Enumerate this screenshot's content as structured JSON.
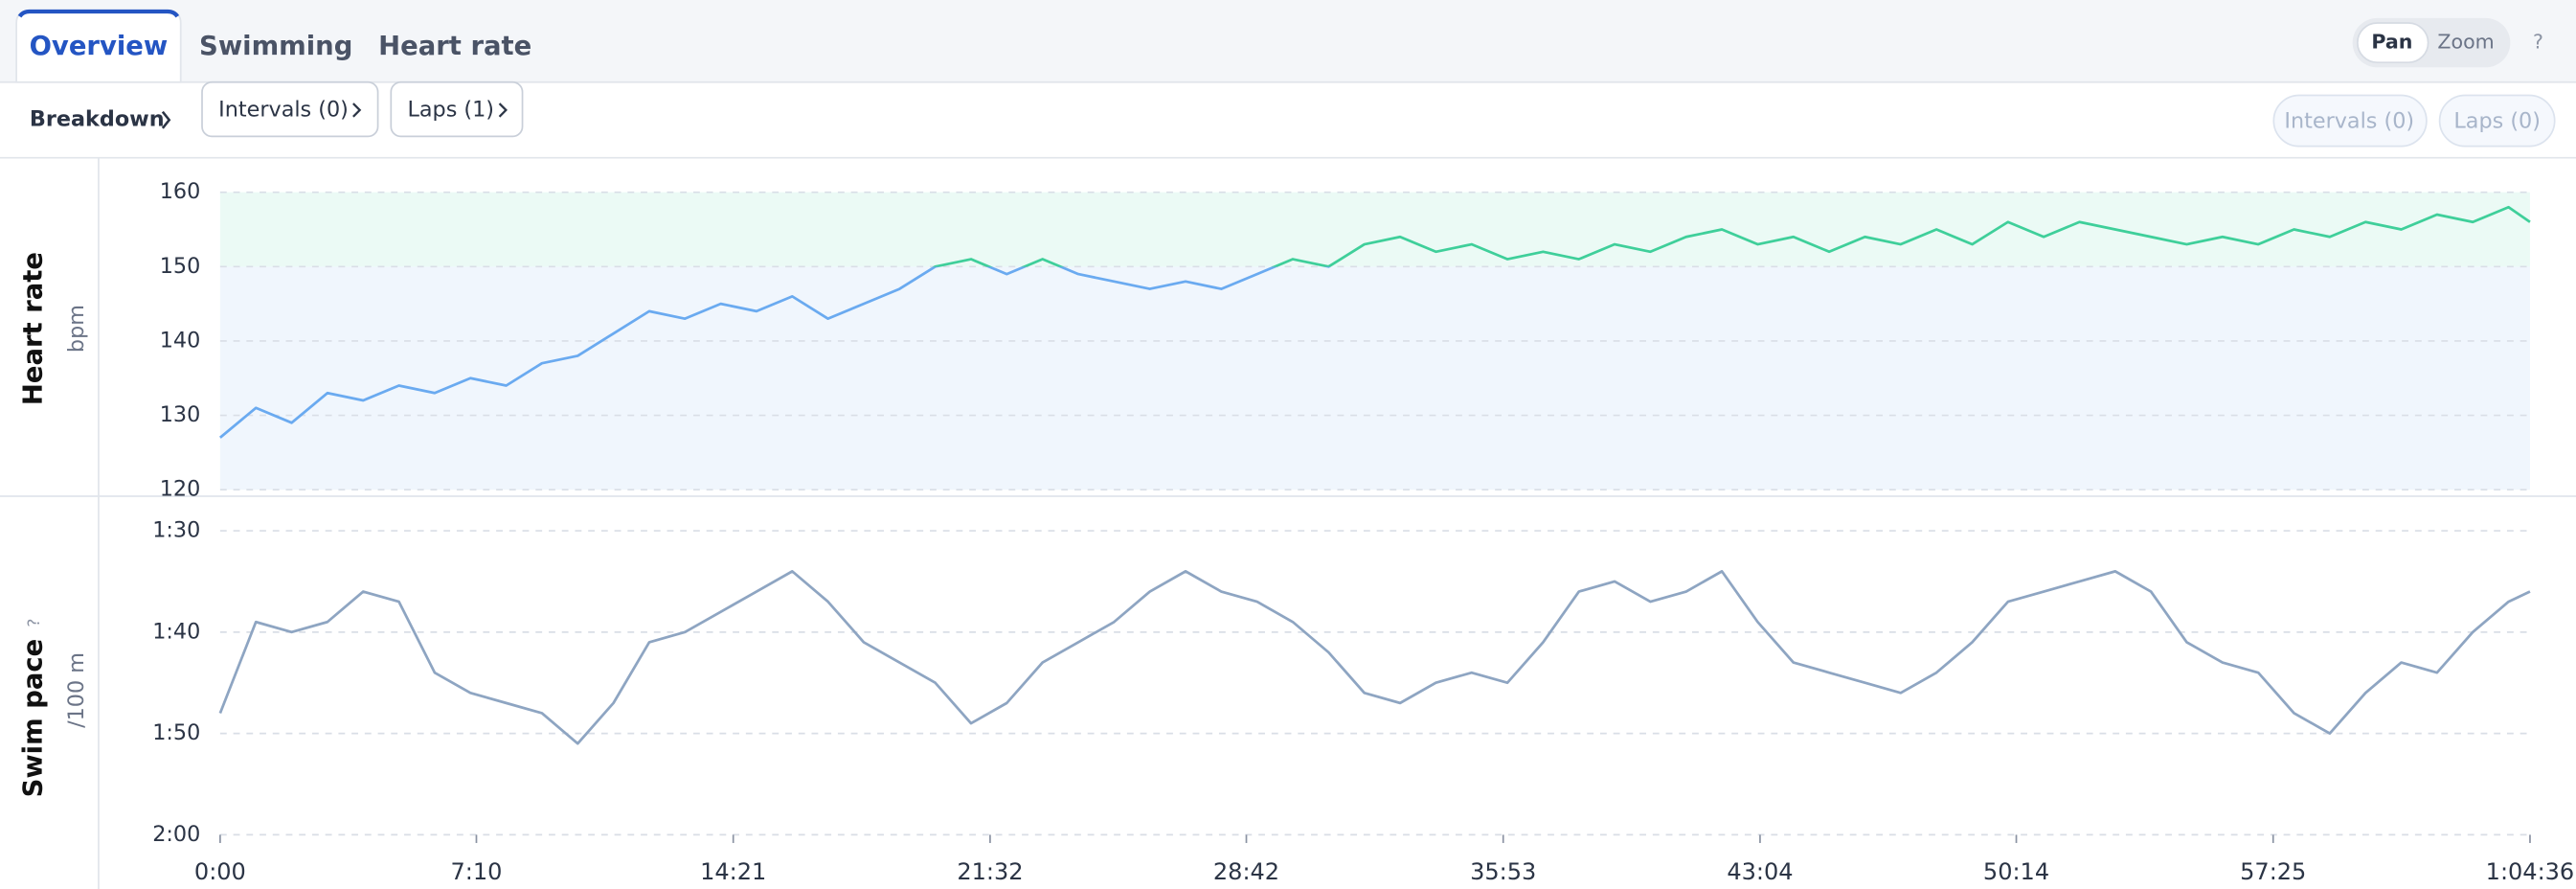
{
  "tabs": [
    "Overview",
    "Swimming",
    "Heart rate"
  ],
  "controls": {
    "pan": "Pan",
    "zoom": "Zoom",
    "help": "?"
  },
  "breakdown": "Breakdown",
  "buttons": [
    "Intervals (0)",
    "Laps (1)"
  ],
  "filters": [
    "Intervals (0)",
    "Laps (0)"
  ],
  "chart_data": [
    {
      "type": "line",
      "ylabel": "Heart rate",
      "yunit": "bpm",
      "x": [
        0,
        60,
        120,
        180,
        240,
        300,
        360,
        420,
        480,
        540,
        600,
        660,
        720,
        780,
        840,
        900,
        960,
        1020,
        1080,
        1140,
        1200,
        1260,
        1320,
        1380,
        1440,
        1500,
        1560,
        1620,
        1680,
        1740,
        1800,
        1860,
        1920,
        1980,
        2040,
        2100,
        2160,
        2220,
        2280,
        2340,
        2400,
        2460,
        2520,
        2580,
        2640,
        2700,
        2760,
        2820,
        2880,
        2940,
        3000,
        3060,
        3120,
        3180,
        3240,
        3300,
        3360,
        3420,
        3480,
        3540,
        3600,
        3660,
        3720,
        3780,
        3840,
        3876
      ],
      "values": [
        127,
        131,
        129,
        133,
        132,
        134,
        133,
        135,
        134,
        137,
        138,
        141,
        144,
        143,
        145,
        144,
        146,
        143,
        145,
        147,
        150,
        151,
        149,
        151,
        149,
        148,
        147,
        148,
        147,
        149,
        151,
        150,
        153,
        154,
        152,
        153,
        151,
        152,
        151,
        153,
        152,
        154,
        155,
        153,
        154,
        152,
        154,
        153,
        155,
        153,
        156,
        154,
        156,
        155,
        154,
        153,
        154,
        153,
        155,
        154,
        156,
        155,
        157,
        156,
        158,
        156
      ],
      "zones": [
        {
          "range": [
            120,
            150
          ],
          "color": "#6aaaf0"
        },
        {
          "range": [
            150,
            160
          ],
          "color": "#3fcf9a"
        }
      ],
      "xlim": [
        0,
        3876
      ],
      "ylim": [
        120,
        160
      ],
      "yticks": [
        120,
        130,
        140,
        150,
        160
      ],
      "grid": true
    },
    {
      "type": "line",
      "ylabel": "Swim pace",
      "yunit": "/100 m",
      "help_icon": "?",
      "color": "#8ea5c2",
      "x": [
        0,
        60,
        120,
        180,
        240,
        300,
        360,
        420,
        480,
        540,
        600,
        660,
        720,
        780,
        840,
        900,
        960,
        1020,
        1080,
        1140,
        1200,
        1260,
        1320,
        1380,
        1440,
        1500,
        1560,
        1620,
        1680,
        1740,
        1800,
        1860,
        1920,
        1980,
        2040,
        2100,
        2160,
        2220,
        2280,
        2340,
        2400,
        2460,
        2520,
        2580,
        2640,
        2700,
        2760,
        2820,
        2880,
        2940,
        3000,
        3060,
        3120,
        3180,
        3240,
        3300,
        3360,
        3420,
        3480,
        3540,
        3600,
        3660,
        3720,
        3780,
        3840,
        3876
      ],
      "values": [
        108,
        99,
        100,
        99,
        96,
        97,
        104,
        106,
        107,
        108,
        111,
        107,
        101,
        100,
        98,
        96,
        94,
        97,
        101,
        103,
        105,
        109,
        107,
        103,
        101,
        99,
        96,
        94,
        96,
        97,
        99,
        102,
        106,
        107,
        105,
        104,
        105,
        101,
        96,
        95,
        97,
        96,
        94,
        99,
        103,
        104,
        105,
        106,
        104,
        101,
        97,
        96,
        95,
        94,
        96,
        101,
        103,
        104,
        108,
        110,
        106,
        103,
        104,
        100,
        97,
        96
      ],
      "xlim": [
        0,
        3876
      ],
      "ylim": [
        120,
        90
      ],
      "yticks": [
        {
          "value": 90,
          "label": "1:30"
        },
        {
          "value": 100,
          "label": "1:40"
        },
        {
          "value": 110,
          "label": "1:50"
        },
        {
          "value": 120,
          "label": "2:00"
        }
      ],
      "xticks": [
        {
          "value": 0,
          "label": "0:00"
        },
        {
          "value": 430,
          "label": "7:10"
        },
        {
          "value": 861,
          "label": "14:21"
        },
        {
          "value": 1292,
          "label": "21:32"
        },
        {
          "value": 1722,
          "label": "28:42"
        },
        {
          "value": 2153,
          "label": "35:53"
        },
        {
          "value": 2584,
          "label": "43:04"
        },
        {
          "value": 3014,
          "label": "50:14"
        },
        {
          "value": 3445,
          "label": "57:25"
        },
        {
          "value": 3876,
          "label": "1:04:36"
        }
      ],
      "grid": true
    }
  ]
}
